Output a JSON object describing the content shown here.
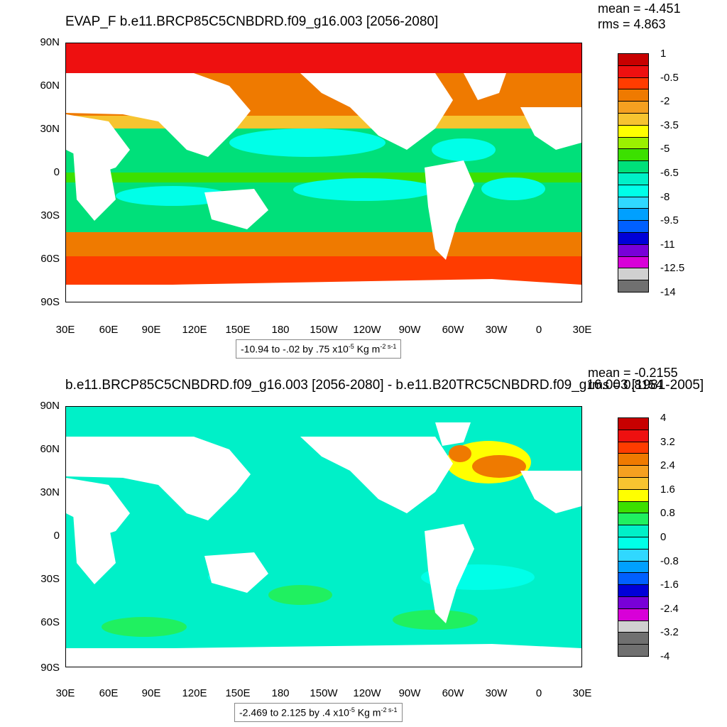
{
  "panels": [
    {
      "title": "EVAP_F b.e11.BRCP85C5CNBDRD.f09_g16.003 [2056-2080]",
      "mean": "mean = -4.451",
      "rms": "rms = 4.863",
      "info_prefix": "-10.94 to -.02 by .75 x10",
      "info_exp": "-5",
      "info_unit": " Kg m",
      "info_uexp": "-2 s-1",
      "colorbar": {
        "labels": [
          "1",
          "-0.5",
          "-2",
          "-3.5",
          "-5",
          "-6.5",
          "-8",
          "-9.5",
          "-11",
          "-12.5",
          "-14"
        ],
        "colors": [
          "#c80000",
          "#ee1010",
          "#ff3c00",
          "#ef7a00",
          "#f5a020",
          "#f7c430",
          "#ffff00",
          "#9bf000",
          "#3ce000",
          "#00e07a",
          "#00f0c8",
          "#00ffe8",
          "#30d8ff",
          "#00a0ff",
          "#0060ff",
          "#0000d8",
          "#7800d8",
          "#d800d8",
          "#d0d0d0",
          "#707070"
        ]
      }
    },
    {
      "title": "b.e11.BRCP85C5CNBDRD.f09_g16.003 [2056-2080] - b.e11.B20TRC5CNBDRD.f09_g16.003 [1981-2005]",
      "mean": "mean = -0.2155",
      "rms": "rms = 0.8154",
      "info_prefix": "-2.469 to 2.125 by .4 x10",
      "info_exp": "-5",
      "info_unit": " Kg m",
      "info_uexp": "-2 s-1",
      "colorbar": {
        "labels": [
          "4",
          "3.2",
          "2.4",
          "1.6",
          "0.8",
          "0",
          "-0.8",
          "-1.6",
          "-2.4",
          "-3.2",
          "-4"
        ],
        "colors": [
          "#c80000",
          "#ee1010",
          "#ff3c00",
          "#ef7a00",
          "#f5a020",
          "#f7c430",
          "#ffff00",
          "#3ce000",
          "#20f060",
          "#00f0c8",
          "#00ffe8",
          "#30d8ff",
          "#00a0ff",
          "#0060ff",
          "#0000d8",
          "#7800d8",
          "#d800d8",
          "#d0d0d0",
          "#707070",
          "#707070"
        ]
      }
    }
  ],
  "axes": {
    "lat_labels": [
      "90N",
      "60N",
      "30N",
      "0",
      "30S",
      "60S",
      "90S"
    ],
    "lon_labels": [
      "30E",
      "60E",
      "90E",
      "120E",
      "150E",
      "180",
      "150W",
      "120W",
      "90W",
      "60W",
      "30W",
      "0",
      "30E"
    ]
  },
  "map_colors": {
    "land": "#ffffff",
    "top_arctic": "#ee1010",
    "top_subpolar": "#ef7a00",
    "top_midlat": "#f7c430",
    "top_subtrop": "#00e07a",
    "top_trades": "#00ffe8",
    "top_equator": "#3ce000",
    "top_southern": "#ff3c00",
    "bot_ocean": "#00f0c8",
    "bot_green": "#20f060",
    "bot_cyan": "#00ffe8",
    "bot_anom_hot": "#ef7a00",
    "bot_anom_warm": "#ffff00"
  }
}
